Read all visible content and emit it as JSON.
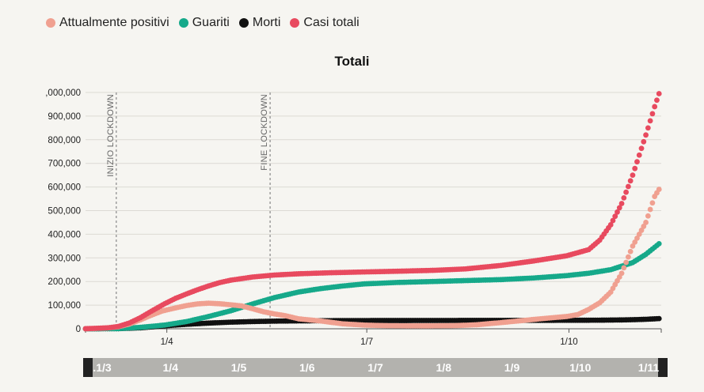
{
  "legend": [
    {
      "label": "Attualmente positivi",
      "color": "#f0a090"
    },
    {
      "label": "Guariti",
      "color": "#16a98a"
    },
    {
      "label": "Morti",
      "color": "#111111"
    },
    {
      "label": "Casi totali",
      "color": "#e84a5f"
    }
  ],
  "slider": {
    "labels": [
      ".1/3",
      "1/4",
      "1/5",
      "1/6",
      "1/7",
      "1/8",
      "1/9",
      "1/10",
      "1/11"
    ]
  },
  "chart_data": {
    "type": "scatter",
    "title": "Totali",
    "xlabel": "",
    "ylabel": "",
    "y_tick_labels": [
      ",000,000",
      "900,000",
      "800,000",
      "700,000",
      "600,000",
      "500,000",
      "400,000",
      "300,000",
      "200,000",
      "100,000",
      "0"
    ],
    "y_ticks": [
      1000000,
      900000,
      800000,
      700000,
      600000,
      500000,
      400000,
      300000,
      200000,
      100000,
      0
    ],
    "x_tick_labels": [
      "1/4",
      "1/7",
      "1/10"
    ],
    "x_ticks": [
      "2020-04-01",
      "2020-07-01",
      "2020-10-01"
    ],
    "xlim": [
      "2020-02-24",
      "2020-11-12"
    ],
    "ylim": [
      0,
      1000000
    ],
    "grid": "horizontal",
    "annotations": [
      {
        "label": "INIZIO LOCKDOWN",
        "x": "2020-03-09"
      },
      {
        "label": "FINE LOCKDOWN",
        "x": "2020-05-18"
      }
    ],
    "series": [
      {
        "name": "Attualmente positivi",
        "color": "#f0a090",
        "points": [
          [
            "2020-02-24",
            200
          ],
          [
            "2020-03-05",
            3300
          ],
          [
            "2020-03-10",
            8500
          ],
          [
            "2020-03-15",
            20000
          ],
          [
            "2020-03-20",
            37900
          ],
          [
            "2020-03-25",
            57500
          ],
          [
            "2020-03-30",
            75500
          ],
          [
            "2020-04-05",
            88300
          ],
          [
            "2020-04-10",
            98300
          ],
          [
            "2020-04-15",
            105400
          ],
          [
            "2020-04-20",
            108200
          ],
          [
            "2020-04-25",
            106000
          ],
          [
            "2020-04-30",
            101600
          ],
          [
            "2020-05-05",
            96700
          ],
          [
            "2020-05-10",
            84800
          ],
          [
            "2020-05-15",
            72000
          ],
          [
            "2020-05-20",
            62700
          ],
          [
            "2020-05-25",
            55300
          ],
          [
            "2020-05-31",
            42000
          ],
          [
            "2020-06-10",
            33000
          ],
          [
            "2020-06-20",
            21000
          ],
          [
            "2020-06-30",
            15500
          ],
          [
            "2020-07-10",
            13100
          ],
          [
            "2020-07-20",
            12300
          ],
          [
            "2020-07-31",
            12400
          ],
          [
            "2020-08-10",
            13300
          ],
          [
            "2020-08-20",
            17000
          ],
          [
            "2020-08-31",
            26000
          ],
          [
            "2020-09-10",
            35000
          ],
          [
            "2020-09-20",
            44000
          ],
          [
            "2020-09-30",
            52000
          ],
          [
            "2020-10-05",
            60000
          ],
          [
            "2020-10-10",
            82000
          ],
          [
            "2020-10-15",
            110000
          ],
          [
            "2020-10-20",
            155000
          ],
          [
            "2020-10-25",
            235000
          ],
          [
            "2020-10-30",
            350000
          ],
          [
            "2020-11-05",
            450000
          ],
          [
            "2020-11-09",
            560000
          ],
          [
            "2020-11-11",
            590000
          ]
        ]
      },
      {
        "name": "Guariti",
        "color": "#16a98a",
        "points": [
          [
            "2020-02-24",
            0
          ],
          [
            "2020-03-10",
            700
          ],
          [
            "2020-03-20",
            6000
          ],
          [
            "2020-03-31",
            15700
          ],
          [
            "2020-04-10",
            30500
          ],
          [
            "2020-04-20",
            52000
          ],
          [
            "2020-04-30",
            75900
          ],
          [
            "2020-05-10",
            105000
          ],
          [
            "2020-05-20",
            132000
          ],
          [
            "2020-05-31",
            155600
          ],
          [
            "2020-06-10",
            170000
          ],
          [
            "2020-06-20",
            181000
          ],
          [
            "2020-06-30",
            190000
          ],
          [
            "2020-07-15",
            196000
          ],
          [
            "2020-07-31",
            200000
          ],
          [
            "2020-08-15",
            204000
          ],
          [
            "2020-08-31",
            208000
          ],
          [
            "2020-09-15",
            215000
          ],
          [
            "2020-09-30",
            225000
          ],
          [
            "2020-10-10",
            235000
          ],
          [
            "2020-10-20",
            250000
          ],
          [
            "2020-10-30",
            280000
          ],
          [
            "2020-11-05",
            315000
          ],
          [
            "2020-11-11",
            360000
          ]
        ]
      },
      {
        "name": "Morti",
        "color": "#111111",
        "points": [
          [
            "2020-02-24",
            7
          ],
          [
            "2020-03-10",
            630
          ],
          [
            "2020-03-20",
            4000
          ],
          [
            "2020-03-31",
            12400
          ],
          [
            "2020-04-10",
            18800
          ],
          [
            "2020-04-20",
            24100
          ],
          [
            "2020-04-30",
            27900
          ],
          [
            "2020-05-10",
            30600
          ],
          [
            "2020-05-20",
            32300
          ],
          [
            "2020-05-31",
            33400
          ],
          [
            "2020-06-15",
            34400
          ],
          [
            "2020-06-30",
            34800
          ],
          [
            "2020-07-31",
            35100
          ],
          [
            "2020-08-31",
            35500
          ],
          [
            "2020-09-30",
            35900
          ],
          [
            "2020-10-15",
            36400
          ],
          [
            "2020-10-25",
            37500
          ],
          [
            "2020-11-01",
            38900
          ],
          [
            "2020-11-05",
            40200
          ],
          [
            "2020-11-11",
            43000
          ]
        ]
      },
      {
        "name": "Casi totali",
        "color": "#e84a5f",
        "points": [
          [
            "2020-02-24",
            229
          ],
          [
            "2020-03-05",
            3900
          ],
          [
            "2020-03-10",
            10100
          ],
          [
            "2020-03-15",
            24700
          ],
          [
            "2020-03-20",
            47000
          ],
          [
            "2020-03-25",
            74400
          ],
          [
            "2020-03-31",
            105800
          ],
          [
            "2020-04-05",
            128900
          ],
          [
            "2020-04-10",
            147600
          ],
          [
            "2020-04-15",
            165200
          ],
          [
            "2020-04-20",
            181200
          ],
          [
            "2020-04-25",
            195300
          ],
          [
            "2020-04-30",
            205500
          ],
          [
            "2020-05-10",
            219000
          ],
          [
            "2020-05-20",
            227400
          ],
          [
            "2020-05-31",
            232700
          ],
          [
            "2020-06-15",
            237300
          ],
          [
            "2020-06-30",
            240500
          ],
          [
            "2020-07-15",
            243500
          ],
          [
            "2020-07-31",
            247200
          ],
          [
            "2020-08-15",
            253400
          ],
          [
            "2020-08-31",
            268000
          ],
          [
            "2020-09-15",
            287000
          ],
          [
            "2020-09-30",
            309000
          ],
          [
            "2020-10-10",
            335000
          ],
          [
            "2020-10-15",
            375000
          ],
          [
            "2020-10-20",
            440000
          ],
          [
            "2020-10-25",
            530000
          ],
          [
            "2020-10-30",
            650000
          ],
          [
            "2020-11-05",
            820000
          ],
          [
            "2020-11-09",
            940000
          ],
          [
            "2020-11-11",
            995000
          ]
        ]
      }
    ]
  }
}
